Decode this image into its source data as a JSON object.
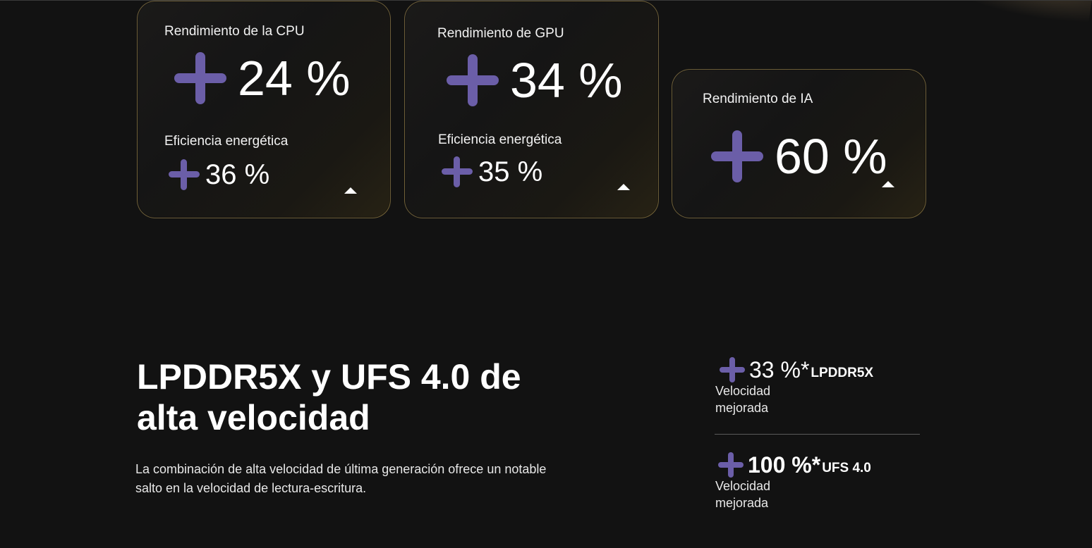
{
  "cards": {
    "cpu": {
      "title": "Rendimiento de la CPU",
      "value": "24 %",
      "sub_title": "Eficiencia energética",
      "sub_value": "36 %"
    },
    "gpu": {
      "title": "Rendimiento de GPU",
      "value": "34 %",
      "sub_title": "Eficiencia energética",
      "sub_value": "35 %"
    },
    "ai": {
      "title": "Rendimiento de IA",
      "value": "60 %"
    }
  },
  "section": {
    "title": "LPDDR5X y UFS 4.0 de alta velocidad",
    "description": "La combinación de alta velocidad de última generación ofrece un notable salto en la velocidad de lectura-escritura."
  },
  "stats": [
    {
      "value": "33 %*",
      "tag": "LPDDR5X",
      "caption": "Velocidad mejorada"
    },
    {
      "value": "100 %*",
      "tag": "UFS 4.0",
      "caption": "Velocidad mejorada"
    }
  ],
  "colors": {
    "background": "#121212",
    "plus_accent": "#6b5ea8",
    "card_border": "#d2b464"
  },
  "icons": {
    "plus": "plus-icon",
    "expand": "caret-up-icon"
  }
}
